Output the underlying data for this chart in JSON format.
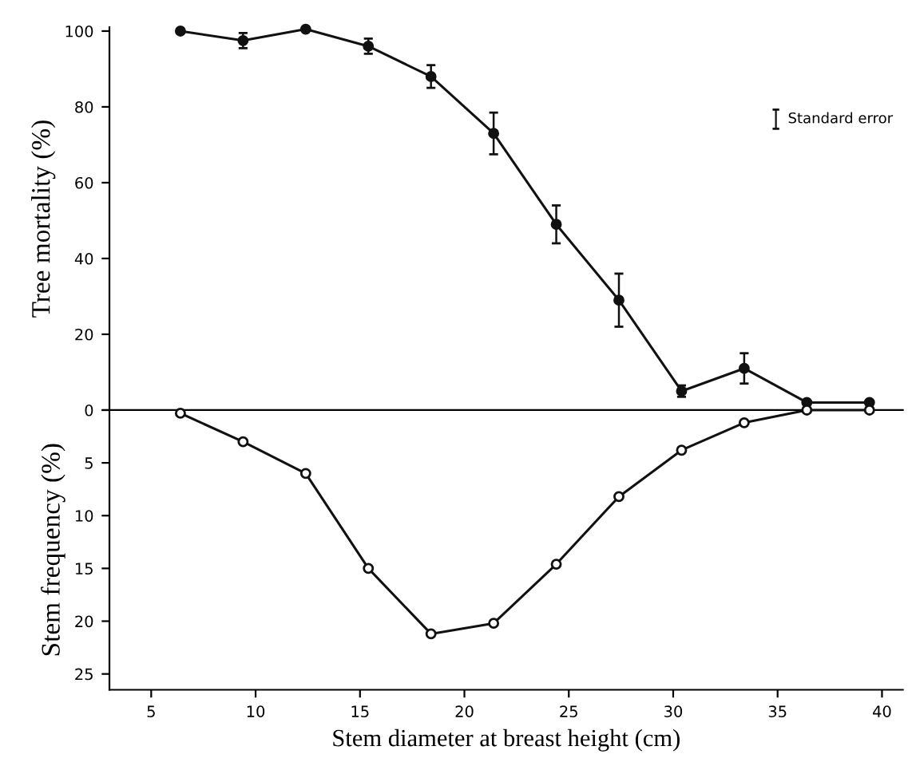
{
  "chart_data": [
    {
      "type": "line",
      "ylabel": "Tree mortality (%)",
      "x": [
        6.4,
        9.4,
        12.4,
        15.4,
        18.4,
        21.4,
        24.4,
        27.4,
        30.4,
        33.4,
        36.4,
        39.4
      ],
      "series": [
        {
          "color": "#111111",
          "values": [
            100,
            97.5,
            100.5,
            96,
            88,
            73,
            49,
            29,
            5,
            11,
            2,
            2
          ],
          "errors": [
            null,
            2,
            null,
            2,
            3,
            5.5,
            5,
            7,
            1.5,
            4,
            null,
            null
          ]
        }
      ],
      "xlim": [
        3,
        41
      ],
      "ylim": [
        0,
        101
      ],
      "yticks": [
        0,
        20,
        40,
        60,
        80,
        100
      ],
      "tick_labels": "y",
      "marker": "circle",
      "line_style": "solid",
      "grid": false,
      "annotations": [
        "Standard error"
      ]
    },
    {
      "type": "line",
      "ylabel": "Stem frequency (%)",
      "xlabel": "Stem diameter at breast height (cm)",
      "x": [
        6.4,
        9.4,
        12.4,
        15.4,
        18.4,
        21.4,
        24.4,
        27.4,
        30.4,
        33.4,
        36.4,
        39.4
      ],
      "series": [
        {
          "color": "#111111",
          "values": [
            0.3,
            3,
            6,
            15,
            21.2,
            20.2,
            14.6,
            8.2,
            3.8,
            1.2,
            0,
            0
          ]
        }
      ],
      "xlim": [
        3,
        41
      ],
      "ylim": [
        26.5,
        0
      ],
      "xticks": [
        5,
        10,
        15,
        20,
        25,
        30,
        35,
        40
      ],
      "yticks": [
        {
          "value": 0,
          "label": null
        },
        5,
        10,
        15,
        20,
        25
      ],
      "marker": "circle",
      "line_style": "solid",
      "grid": false
    }
  ]
}
